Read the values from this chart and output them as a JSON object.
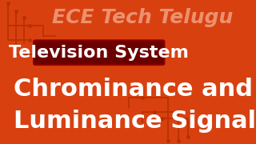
{
  "bg_color": "#D94010",
  "circuit_color": "#B83000",
  "title_text": "ECE Tech Telugu",
  "title_color": "#F0A080",
  "title_fontsize": 18,
  "banner_text": "Television System",
  "banner_bg": "#6B0000",
  "banner_color": "#FFFFFF",
  "banner_fontsize": 16,
  "main_line1": "Chrominance and",
  "main_line2": "Luminance Signal",
  "main_color": "#FFFFFF",
  "main_fontsize": 22
}
